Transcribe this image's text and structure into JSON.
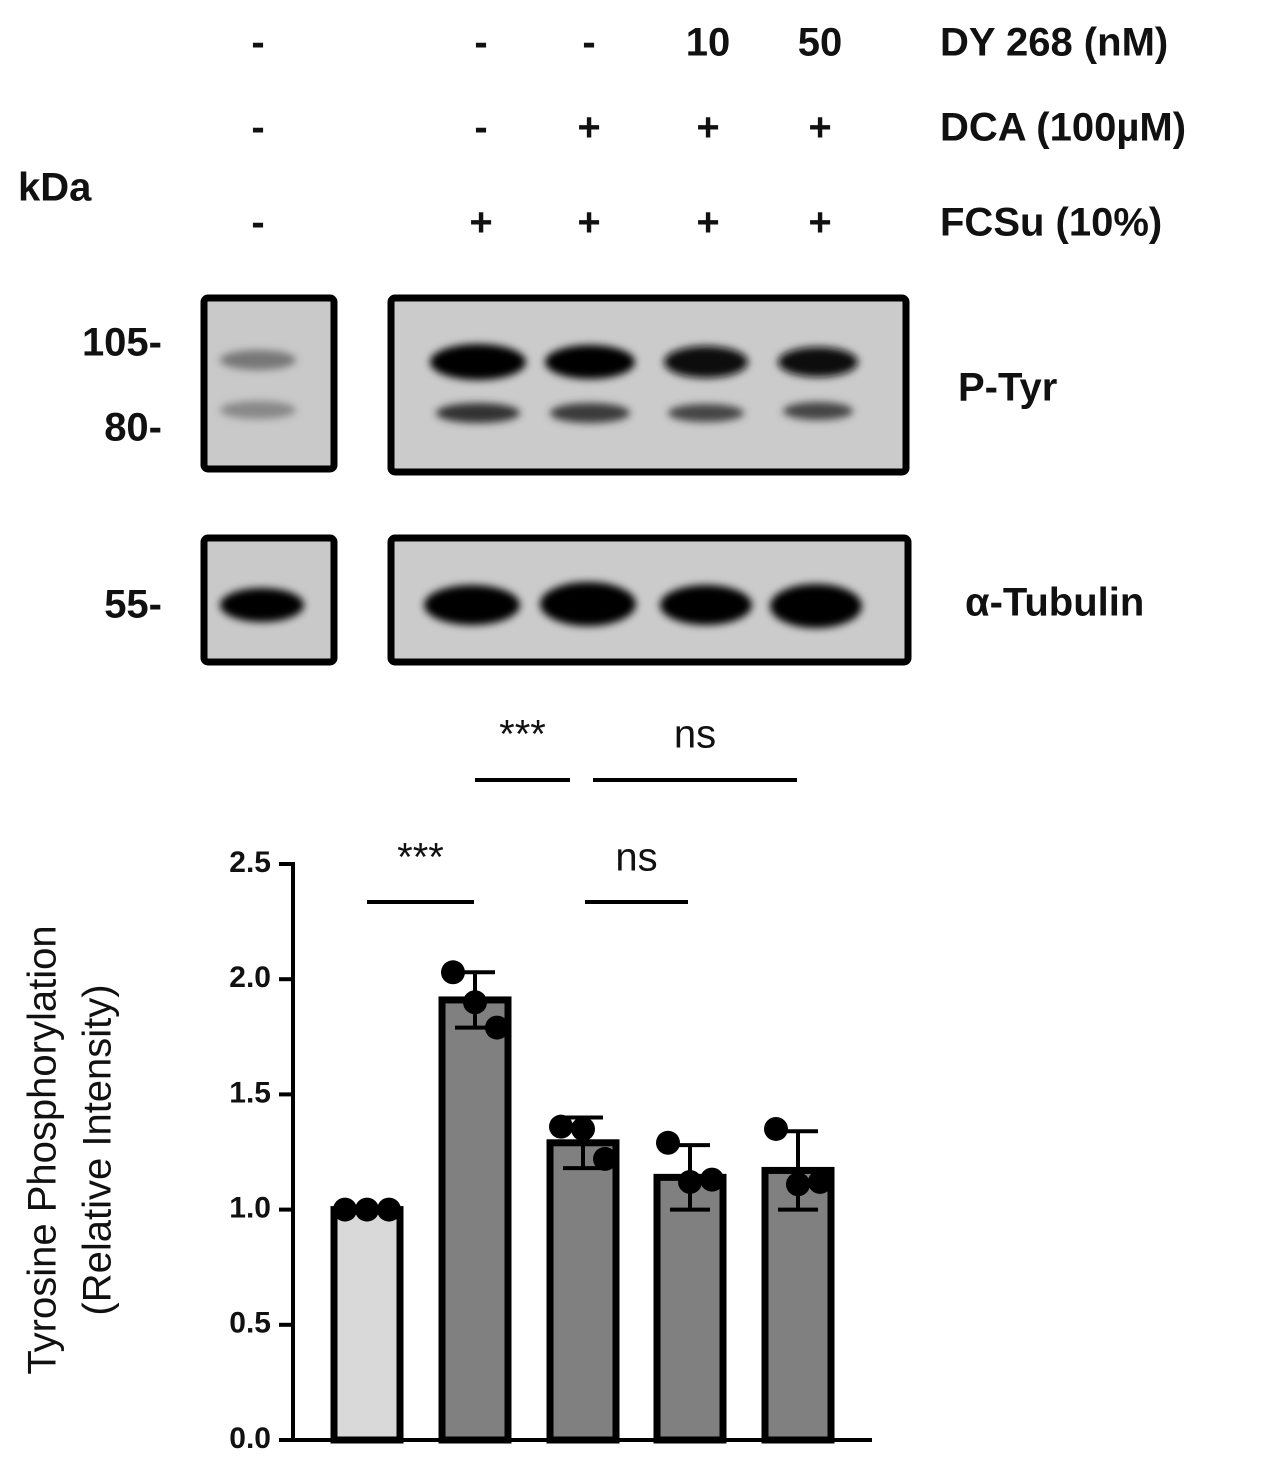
{
  "blot": {
    "kda_label": "kDa",
    "treatments": [
      {
        "label": "DY 268 (nM)",
        "values": [
          "-",
          "-",
          "-",
          "10",
          "50"
        ]
      },
      {
        "label": "DCA (100µM)",
        "values": [
          "-",
          "-",
          "+",
          "+",
          "+"
        ]
      },
      {
        "label": "FCSu (10%)",
        "values": [
          "-",
          "+",
          "+",
          "+",
          "+"
        ]
      }
    ],
    "markers": [
      "105-",
      "80-",
      "55-"
    ],
    "panels": [
      "P-Tyr",
      "α-Tubulin"
    ],
    "significance": [
      "***",
      "ns"
    ]
  },
  "chart_data": {
    "type": "bar",
    "ylabel": [
      "Tyrosine Phosphorylation",
      "(Relative Intensity)"
    ],
    "categories": [
      null,
      null,
      null,
      null,
      null
    ],
    "values": [
      1.0,
      1.91,
      1.29,
      1.14,
      1.17
    ],
    "errors": [
      0,
      0.12,
      0.11,
      0.14,
      0.17
    ],
    "points": [
      [
        1.0,
        1.0,
        1.0
      ],
      [
        2.03,
        1.9,
        1.79
      ],
      [
        1.36,
        1.35,
        1.22
      ],
      [
        1.29,
        1.12,
        1.13
      ],
      [
        1.35,
        1.11,
        1.12
      ]
    ],
    "colors": [
      "#d9d9d9",
      "#808080",
      "#808080",
      "#808080",
      "#808080"
    ],
    "ylim": [
      0,
      2.5
    ],
    "yticks": [
      {
        "value": 0,
        "label": "0.0"
      },
      {
        "value": 0.5,
        "label": "0.5"
      },
      {
        "value": 1,
        "label": "1.0"
      },
      {
        "value": 1.5,
        "label": "1.5"
      },
      {
        "value": 2,
        "label": "2.0"
      },
      {
        "value": 2.5,
        "label": "2.5"
      }
    ],
    "annotations": [
      "***",
      "ns"
    ]
  }
}
